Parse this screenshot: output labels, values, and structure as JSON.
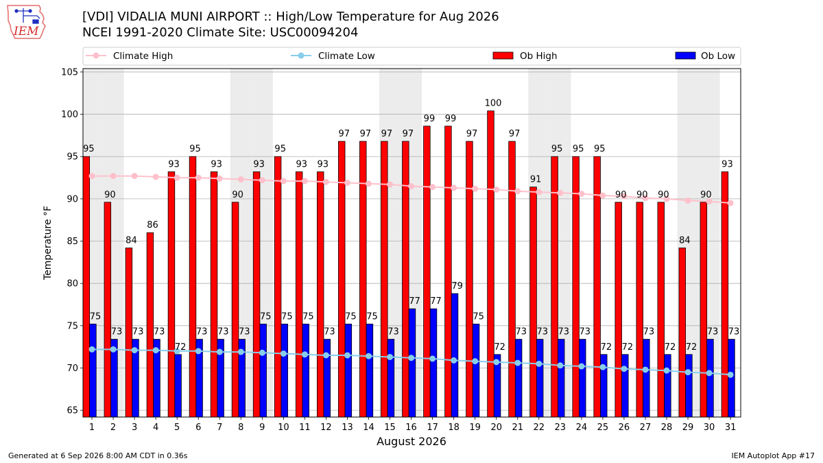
{
  "logo": {
    "text": "IEM"
  },
  "footer": {
    "generated": "Generated at 6 Sep 2026 8:00 AM CDT in 0.36s",
    "app": "IEM Autoplot App #17"
  },
  "chart_data": {
    "type": "bar",
    "title": "[VDI] VIDALIA MUNI AIRPORT :: High/Low Temperature for Aug 2026",
    "subtitle": "NCEI 1991-2020 Climate Site: USC00094204",
    "xlabel": "August 2026",
    "ylabel": "Temperature °F",
    "xlim": [
      0.58,
      31.48
    ],
    "ylim": [
      64.2,
      105.4
    ],
    "yticks": [
      65,
      70,
      75,
      80,
      85,
      90,
      95,
      100,
      105
    ],
    "grid": "y",
    "legend": "top",
    "weekend_days": [
      1,
      2,
      8,
      9,
      15,
      16,
      22,
      23,
      29,
      30
    ],
    "weekend_shade_color": "#ececec",
    "x": [
      1,
      2,
      3,
      4,
      5,
      6,
      7,
      8,
      9,
      10,
      11,
      12,
      13,
      14,
      15,
      16,
      17,
      18,
      19,
      20,
      21,
      22,
      23,
      24,
      25,
      26,
      27,
      28,
      29,
      30,
      31
    ],
    "series": [
      {
        "name": "Climate High",
        "type": "line",
        "color": "#ffc0cb",
        "values": [
          92.7,
          92.7,
          92.7,
          92.6,
          92.5,
          92.5,
          92.4,
          92.3,
          92.2,
          92.1,
          92.1,
          92.0,
          91.9,
          91.8,
          91.7,
          91.5,
          91.4,
          91.3,
          91.2,
          91.1,
          90.9,
          90.8,
          90.7,
          90.6,
          90.4,
          90.3,
          90.1,
          90.0,
          89.8,
          89.7,
          89.5
        ]
      },
      {
        "name": "Climate Low",
        "type": "line",
        "color": "#87ceeb",
        "values": [
          72.2,
          72.2,
          72.1,
          72.1,
          72.0,
          72.0,
          71.9,
          71.9,
          71.8,
          71.7,
          71.6,
          71.5,
          71.5,
          71.4,
          71.3,
          71.2,
          71.1,
          70.9,
          70.8,
          70.7,
          70.6,
          70.5,
          70.3,
          70.2,
          70.1,
          69.9,
          69.8,
          69.7,
          69.5,
          69.4,
          69.2
        ]
      },
      {
        "name": "Ob High",
        "type": "bar",
        "color": "#ff0000",
        "values": [
          95.0,
          89.6,
          84.2,
          86.0,
          93.2,
          95.0,
          93.2,
          89.6,
          93.2,
          95.0,
          93.2,
          93.2,
          96.8,
          96.8,
          96.8,
          96.8,
          98.6,
          98.6,
          96.8,
          100.4,
          96.8,
          91.4,
          95.0,
          95.0,
          95.0,
          89.6,
          89.6,
          89.6,
          84.2,
          89.6,
          93.2
        ]
      },
      {
        "name": "Ob Low",
        "type": "bar",
        "color": "#0000ff",
        "values": [
          75.2,
          73.4,
          73.4,
          73.4,
          71.6,
          73.4,
          73.4,
          73.4,
          75.2,
          75.2,
          75.2,
          73.4,
          75.2,
          75.2,
          73.4,
          77.0,
          77.0,
          78.8,
          75.2,
          71.6,
          73.4,
          73.4,
          73.4,
          73.4,
          71.6,
          71.6,
          73.4,
          71.6,
          71.6,
          73.4,
          73.4
        ]
      }
    ]
  }
}
